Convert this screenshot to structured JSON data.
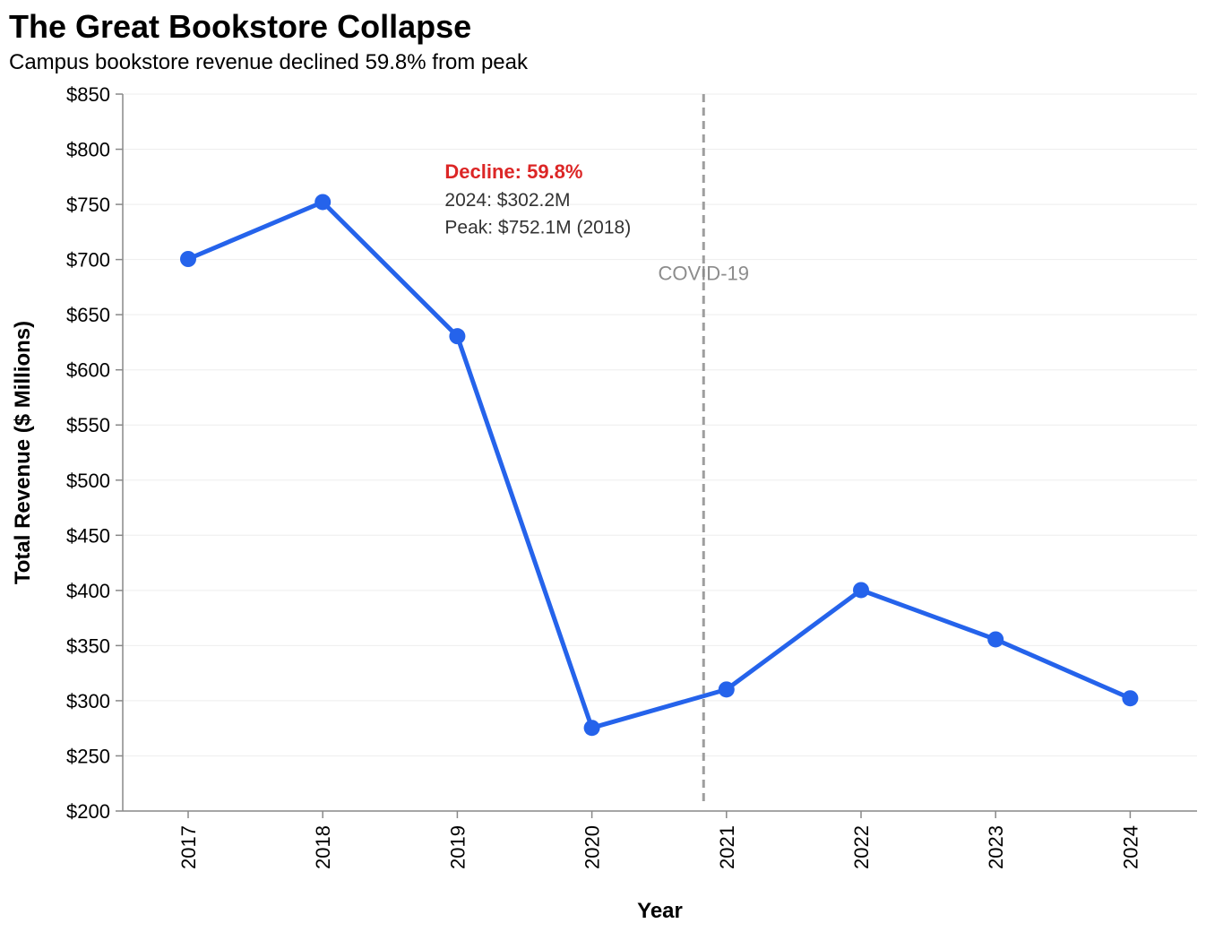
{
  "colors": {
    "line": "#2563eb",
    "decline_text": "#dc2626",
    "annotation_text": "#333333",
    "covid_line": "#9e9e9e",
    "covid_text": "#8c8c8c"
  },
  "chart_data": {
    "type": "line",
    "title": "The Great Bookstore Collapse",
    "subtitle": "Campus bookstore revenue declined 59.8% from peak",
    "xlabel": "Year",
    "ylabel": "Total Revenue ($ Millions)",
    "ylim": [
      200,
      850
    ],
    "yticks": [
      200,
      250,
      300,
      350,
      400,
      450,
      500,
      550,
      600,
      650,
      700,
      750,
      800,
      850
    ],
    "ytick_labels": [
      "$200",
      "$250",
      "$300",
      "$350",
      "$400",
      "$450",
      "$500",
      "$550",
      "$600",
      "$650",
      "$700",
      "$750",
      "$800",
      "$850"
    ],
    "categories": [
      "2017",
      "2018",
      "2019",
      "2020",
      "2021",
      "2022",
      "2023",
      "2024"
    ],
    "values": [
      700.5,
      752.1,
      630.5,
      275.4,
      310.2,
      400.3,
      355.6,
      302.2
    ],
    "grid": true,
    "annotations": {
      "decline_label": "Decline: 59.8%",
      "current_label": "2024: $302.2M",
      "peak_label": "Peak: $752.1M (2018)",
      "anchor_year": 2019,
      "anchor_values": [
        780,
        755,
        730
      ]
    },
    "event_marker": {
      "label": "COVID-19",
      "x_position_year": 2020.83,
      "label_value": 688
    }
  }
}
